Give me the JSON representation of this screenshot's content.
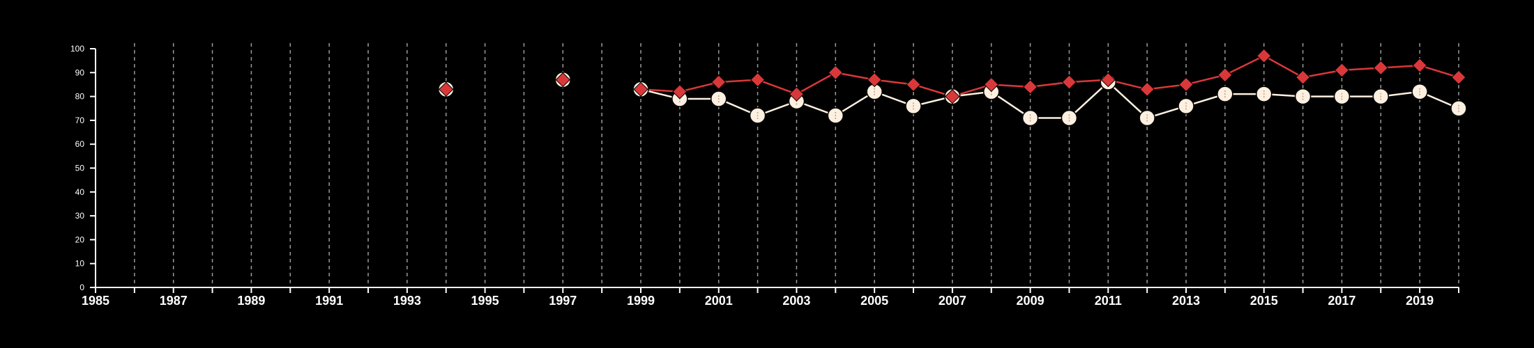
{
  "chart_data": {
    "type": "line",
    "title": "",
    "xlabel": "",
    "ylabel": "",
    "xlim": [
      1985,
      2020
    ],
    "ylim": [
      0,
      100
    ],
    "x_ticks": [
      1985,
      1987,
      1989,
      1991,
      1993,
      1995,
      1997,
      1999,
      2001,
      2003,
      2005,
      2007,
      2009,
      2011,
      2013,
      2015,
      2017,
      2019
    ],
    "y_ticks": [
      0,
      10,
      20,
      30,
      40,
      50,
      60,
      70,
      80,
      90,
      100
    ],
    "vertical_dashed_grid_years": [
      1986,
      1987,
      1988,
      1989,
      1990,
      1991,
      1992,
      1993,
      1994,
      1995,
      1996,
      1997,
      1998,
      1999,
      2000,
      2001,
      2002,
      2003,
      2004,
      2005,
      2006,
      2007,
      2008,
      2009,
      2010,
      2011,
      2012,
      2013,
      2014,
      2015,
      2016,
      2017,
      2018,
      2019,
      2020
    ],
    "horizontal_grid": false,
    "legend": "none",
    "series": [
      {
        "color": "#fdf0e0",
        "marker": "circle",
        "points": [
          [
            1994,
            83
          ],
          [
            1997,
            87
          ],
          [
            1999,
            83
          ],
          [
            2000,
            79
          ],
          [
            2001,
            79
          ],
          [
            2002,
            72
          ],
          [
            2003,
            78
          ],
          [
            2004,
            72
          ],
          [
            2005,
            82
          ],
          [
            2006,
            76
          ],
          [
            2007,
            80
          ],
          [
            2008,
            82
          ],
          [
            2009,
            71
          ],
          [
            2010,
            71
          ],
          [
            2011,
            86
          ],
          [
            2012,
            71
          ],
          [
            2013,
            76
          ],
          [
            2014,
            81
          ],
          [
            2015,
            81
          ],
          [
            2016,
            80
          ],
          [
            2017,
            80
          ],
          [
            2018,
            80
          ],
          [
            2019,
            82
          ],
          [
            2020,
            75
          ]
        ]
      },
      {
        "color": "#d9383a",
        "marker": "diamond",
        "points": [
          [
            1994,
            83
          ],
          [
            1997,
            87
          ],
          [
            1999,
            83
          ],
          [
            2000,
            82
          ],
          [
            2001,
            86
          ],
          [
            2002,
            87
          ],
          [
            2003,
            81
          ],
          [
            2004,
            90
          ],
          [
            2005,
            87
          ],
          [
            2006,
            85
          ],
          [
            2007,
            80
          ],
          [
            2008,
            85
          ],
          [
            2009,
            84
          ],
          [
            2010,
            86
          ],
          [
            2011,
            87
          ],
          [
            2012,
            83
          ],
          [
            2013,
            85
          ],
          [
            2014,
            89
          ],
          [
            2015,
            97
          ],
          [
            2016,
            88
          ],
          [
            2017,
            91
          ],
          [
            2018,
            92
          ],
          [
            2019,
            93
          ],
          [
            2020,
            88
          ]
        ]
      }
    ]
  }
}
